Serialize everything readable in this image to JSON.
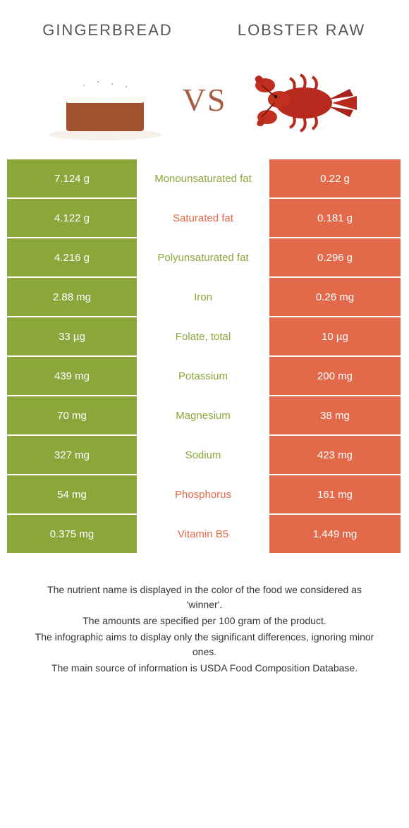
{
  "colors": {
    "food1": "#8ba63a",
    "food2": "#e2694a",
    "white": "#ffffff"
  },
  "header": {
    "food1_title": "GINGERBREAD",
    "food2_title": "LOBSTER RAW",
    "vs": "VS"
  },
  "nutrients": [
    {
      "label": "Monounsaturated fat",
      "val1": "7.124 g",
      "val2": "0.22 g",
      "winner": 1
    },
    {
      "label": "Saturated fat",
      "val1": "4.122 g",
      "val2": "0.181 g",
      "winner": 2
    },
    {
      "label": "Polyunsaturated fat",
      "val1": "4.216 g",
      "val2": "0.296 g",
      "winner": 1
    },
    {
      "label": "Iron",
      "val1": "2.88 mg",
      "val2": "0.26 mg",
      "winner": 1
    },
    {
      "label": "Folate, total",
      "val1": "33 µg",
      "val2": "10 µg",
      "winner": 1
    },
    {
      "label": "Potassium",
      "val1": "439 mg",
      "val2": "200 mg",
      "winner": 1
    },
    {
      "label": "Magnesium",
      "val1": "70 mg",
      "val2": "38 mg",
      "winner": 1
    },
    {
      "label": "Sodium",
      "val1": "327 mg",
      "val2": "423 mg",
      "winner": 1
    },
    {
      "label": "Phosphorus",
      "val1": "54 mg",
      "val2": "161 mg",
      "winner": 2
    },
    {
      "label": "Vitamin B5",
      "val1": "0.375 mg",
      "val2": "1.449 mg",
      "winner": 2
    }
  ],
  "footnotes": [
    "The nutrient name is displayed in the color of the food we considered as 'winner'.",
    "The amounts are specified per 100 gram of the product.",
    "The infographic aims to display only the significant differences, ignoring minor ones.",
    "The main source of information is USDA Food Composition Database."
  ]
}
